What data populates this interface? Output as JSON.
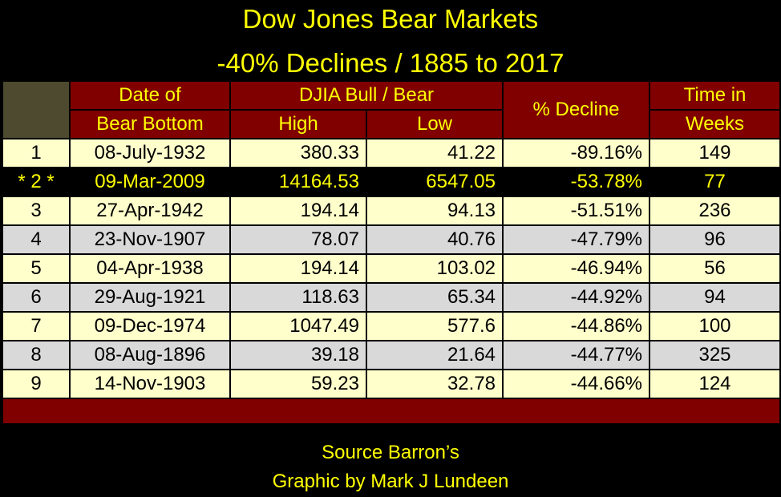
{
  "title": "Dow Jones Bear Markets",
  "subtitle": "-40% Declines / 1885 to 2017",
  "headers": {
    "date_line1": "Date of",
    "date_line2": "Bear Bottom",
    "djia": "DJIA Bull / Bear",
    "high": "High",
    "low": "Low",
    "decline": "% Decline",
    "time_line1": "Time in",
    "time_line2": "Weeks"
  },
  "chart_data": {
    "type": "table",
    "title": "Dow Jones Bear Markets",
    "subtitle": "-40% Declines / 1885 to 2017",
    "columns": [
      "",
      "Date of Bear Bottom",
      "High",
      "Low",
      "% Decline",
      "Time in Weeks"
    ],
    "rows": [
      {
        "rank": "1",
        "date": "08-July-1932",
        "high": "380.33",
        "low": "41.22",
        "decline": "-89.16%",
        "weeks": "149"
      },
      {
        "rank": "* 2 *",
        "date": "09-Mar-2009",
        "high": "14164.53",
        "low": "6547.05",
        "decline": "-53.78%",
        "weeks": "77"
      },
      {
        "rank": "3",
        "date": "27-Apr-1942",
        "high": "194.14",
        "low": "94.13",
        "decline": "-51.51%",
        "weeks": "236"
      },
      {
        "rank": "4",
        "date": "23-Nov-1907",
        "high": "78.07",
        "low": "40.76",
        "decline": "-47.79%",
        "weeks": "96"
      },
      {
        "rank": "5",
        "date": "04-Apr-1938",
        "high": "194.14",
        "low": "103.02",
        "decline": "-46.94%",
        "weeks": "56"
      },
      {
        "rank": "6",
        "date": "29-Aug-1921",
        "high": "118.63",
        "low": "65.34",
        "decline": "-44.92%",
        "weeks": "94"
      },
      {
        "rank": "7",
        "date": "09-Dec-1974",
        "high": "1047.49",
        "low": "577.6",
        "decline": "-44.86%",
        "weeks": "100"
      },
      {
        "rank": "8",
        "date": "08-Aug-1896",
        "high": "39.18",
        "low": "21.64",
        "decline": "-44.77%",
        "weeks": "325"
      },
      {
        "rank": "9",
        "date": "14-Nov-1903",
        "high": "59.23",
        "low": "32.78",
        "decline": "-44.66%",
        "weeks": "124"
      }
    ]
  },
  "footer": {
    "source": "Source Barron’s",
    "credit": "Graphic by Mark J Lundeen"
  },
  "colors": {
    "background": "#000000",
    "title_text": "#ffff00",
    "header_fill": "#800000",
    "corner_fill": "#4d4a30",
    "row_cream": "#ffffcc",
    "row_grey": "#d9d9d9",
    "highlight_row": "#000000"
  }
}
